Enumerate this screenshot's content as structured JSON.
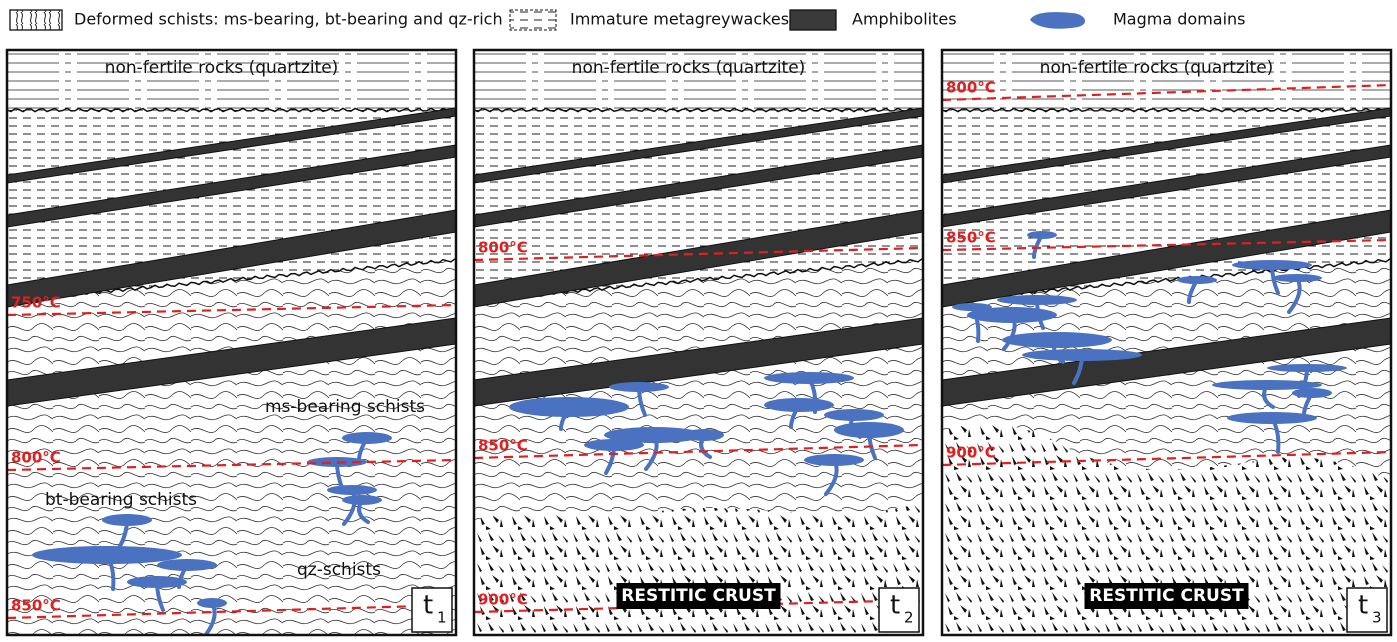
{
  "legend": [
    {
      "label": "Deformed schists: ms-bearing, bt-bearing and qz-rich"
    },
    {
      "label": "Immature metagreywackes"
    },
    {
      "label": "Amphibolites"
    },
    {
      "label": "Magma domains"
    }
  ],
  "panels": [
    {
      "top_label": "non-fertile rocks (quartzite)",
      "isotherms": [
        "750°C",
        "800°C",
        "850°C"
      ],
      "rock_labels": [
        "ms-bearing schists",
        "bt-bearing schists",
        "qz-schists"
      ],
      "time": {
        "base": "t",
        "sub": "1"
      }
    },
    {
      "top_label": "non-fertile rocks (quartzite)",
      "isotherms": [
        "800°C",
        "850°C",
        "900°C"
      ],
      "restite_label": "RESTITIC CRUST",
      "time": {
        "base": "t",
        "sub": "2"
      }
    },
    {
      "top_label": "non-fertile rocks (quartzite)",
      "isotherms": [
        "800°C",
        "850°C",
        "900°C"
      ],
      "restite_label": "RESTITIC CRUST",
      "time": {
        "base": "t",
        "sub": "3"
      }
    }
  ]
}
